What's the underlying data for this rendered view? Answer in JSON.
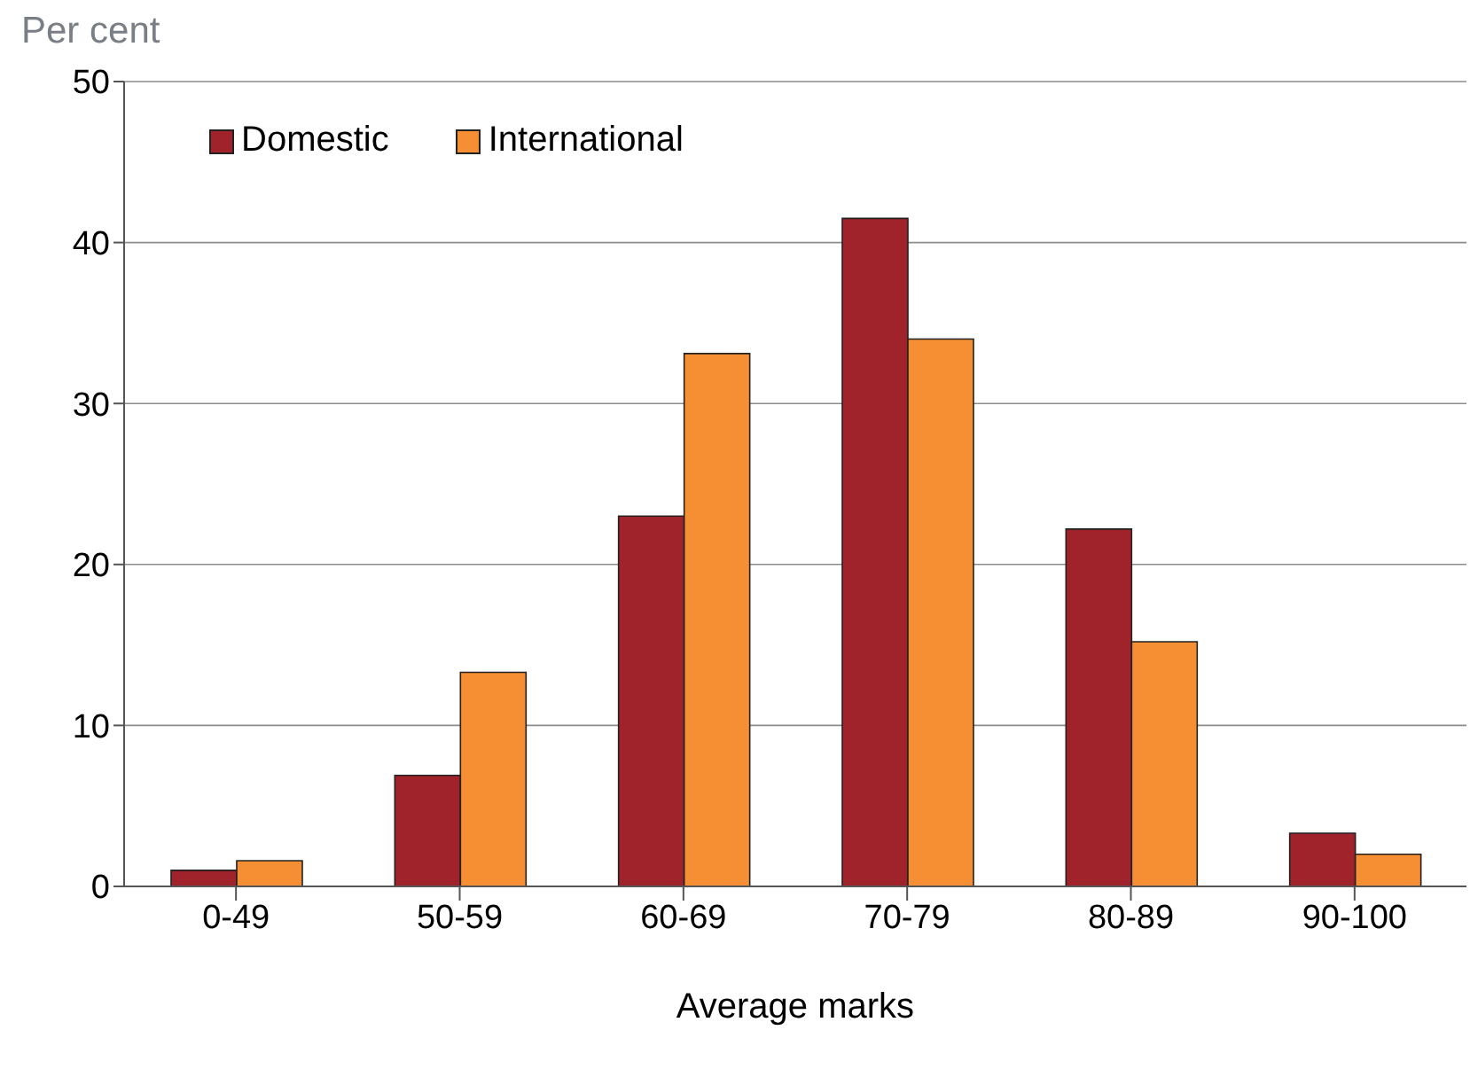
{
  "chart_data": {
    "type": "bar",
    "ylabel": "Per cent",
    "xlabel": "Average marks",
    "categories": [
      "0-49",
      "50-59",
      "60-69",
      "70-79",
      "80-89",
      "90-100"
    ],
    "series": [
      {
        "name": "Domestic",
        "color": "#a0222a",
        "values": [
          1.0,
          6.9,
          23,
          41.5,
          22.2,
          3.3
        ]
      },
      {
        "name": "International",
        "color": "#f68e33",
        "values": [
          1.6,
          13.3,
          33.1,
          34.0,
          15.2,
          2.0
        ]
      }
    ],
    "ylim": [
      0,
      50
    ],
    "yticks": [
      0,
      10,
      20,
      30,
      40,
      50
    ],
    "grid": "y",
    "legend": "top left"
  }
}
